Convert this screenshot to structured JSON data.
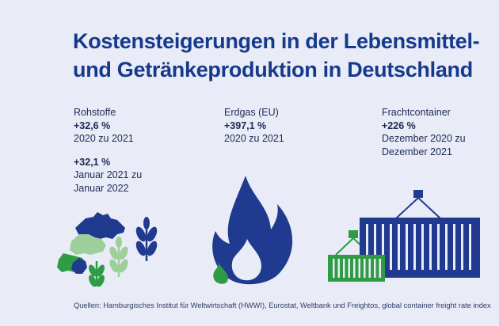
{
  "title": {
    "line1": "Kostensteigerungen in der Lebensmittel-",
    "line2": "und Getränkeproduktion in Deutschland"
  },
  "columns": [
    {
      "label": "Rohstoffe",
      "entries": [
        {
          "value": "+32,6 %",
          "period": "2020 zu 2021"
        },
        {
          "value": "+32,1 %",
          "period_line1": "Januar 2021 zu",
          "period_line2": "Januar 2022"
        }
      ]
    },
    {
      "label": "Erdgas (EU)",
      "entries": [
        {
          "value": "+397,1 %",
          "period": "2020 zu 2021"
        }
      ]
    },
    {
      "label": "Frachtcontainer",
      "entries": [
        {
          "value": "+226 %",
          "period_line1": "Dezember 2020 zu",
          "period_line2": "Dezember 2021"
        }
      ]
    }
  ],
  "footer": "Quellen: Hamburgisches Institut für Weltwirtschaft (HWWI), Eurostat, Weltbank und Freightos, global container freight rate index",
  "colors": {
    "background": "#e9ebf6",
    "navy": "#1f3a8f",
    "green": "#2f9b45",
    "light_green": "#9ccf9a"
  },
  "icons": [
    "livestock-icon",
    "wheat-icon",
    "gas-flame-icon",
    "shipping-container-icon",
    "crane-hook-icon"
  ]
}
